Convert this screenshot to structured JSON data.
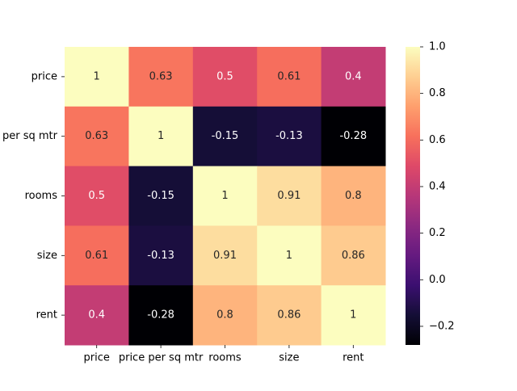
{
  "chart_data": {
    "type": "heatmap",
    "x_labels": [
      "price",
      "price per sq mtr",
      "rooms",
      "size",
      "rent"
    ],
    "y_labels": [
      "price",
      "price per sq mtr",
      "rooms",
      "size",
      "rent"
    ],
    "values": [
      [
        1,
        0.63,
        0.5,
        0.61,
        0.4
      ],
      [
        0.63,
        1,
        -0.15,
        -0.13,
        -0.28
      ],
      [
        0.5,
        -0.15,
        1,
        0.91,
        0.8
      ],
      [
        0.61,
        -0.13,
        0.91,
        1,
        0.86
      ],
      [
        0.4,
        -0.28,
        0.8,
        0.86,
        1
      ]
    ],
    "annotations": [
      [
        "1",
        "0.63",
        "0.5",
        "0.61",
        "0.4"
      ],
      [
        "0.63",
        "1",
        "-0.15",
        "-0.13",
        "-0.28"
      ],
      [
        "0.5",
        "-0.15",
        "1",
        "0.91",
        "0.8"
      ],
      [
        "0.61",
        "-0.13",
        "0.91",
        "1",
        "0.86"
      ],
      [
        "0.4",
        "-0.28",
        "0.8",
        "0.86",
        "1"
      ]
    ],
    "colorscale": "magma",
    "vmin": -0.28,
    "vmax": 1.0,
    "colorbar_ticks": [
      1.0,
      0.8,
      0.6,
      0.4,
      0.2,
      0.0,
      -0.2
    ],
    "colorbar_tick_labels": [
      "1.0",
      "0.8",
      "0.6",
      "0.4",
      "0.2",
      "0.0",
      "−0.2"
    ],
    "title": "",
    "xlabel": "",
    "ylabel": ""
  }
}
